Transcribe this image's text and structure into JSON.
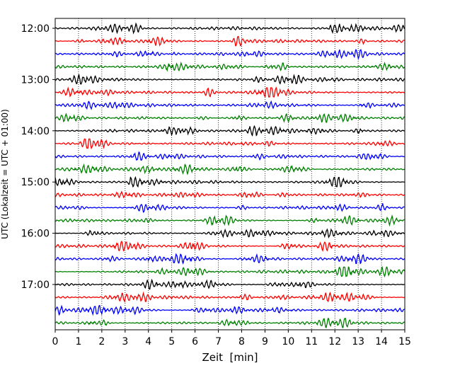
{
  "chart_data": {
    "type": "line",
    "title": "",
    "xlabel": "Zeit  [min]",
    "ylabel": "UTC (Lokalzeit = UTC + 01:00)",
    "xlim": [
      0,
      15
    ],
    "x_ticks": [
      "0",
      "1",
      "2",
      "3",
      "4",
      "5",
      "6",
      "7",
      "8",
      "9",
      "10",
      "11",
      "12",
      "13",
      "14",
      "15"
    ],
    "y_ticks": [
      "12:00",
      "13:00",
      "14:00",
      "15:00",
      "16:00",
      "17:00"
    ],
    "grid": "vertical dotted",
    "trace_interval_min": 15,
    "series": [
      {
        "start": "12:00",
        "color": "#000000"
      },
      {
        "start": "12:15",
        "color": "#ff0000"
      },
      {
        "start": "12:30",
        "color": "#0000ff"
      },
      {
        "start": "12:45",
        "color": "#008000"
      },
      {
        "start": "13:00",
        "color": "#000000"
      },
      {
        "start": "13:15",
        "color": "#ff0000"
      },
      {
        "start": "13:30",
        "color": "#0000ff"
      },
      {
        "start": "13:45",
        "color": "#008000"
      },
      {
        "start": "14:00",
        "color": "#000000"
      },
      {
        "start": "14:15",
        "color": "#ff0000"
      },
      {
        "start": "14:30",
        "color": "#0000ff"
      },
      {
        "start": "14:45",
        "color": "#008000"
      },
      {
        "start": "15:00",
        "color": "#000000"
      },
      {
        "start": "15:15",
        "color": "#ff0000"
      },
      {
        "start": "15:30",
        "color": "#0000ff"
      },
      {
        "start": "15:45",
        "color": "#008000"
      },
      {
        "start": "16:00",
        "color": "#000000"
      },
      {
        "start": "16:15",
        "color": "#ff0000"
      },
      {
        "start": "16:30",
        "color": "#0000ff"
      },
      {
        "start": "16:45",
        "color": "#008000"
      },
      {
        "start": "17:00",
        "color": "#000000"
      },
      {
        "start": "17:15",
        "color": "#ff0000"
      },
      {
        "start": "17:30",
        "color": "#0000ff"
      },
      {
        "start": "17:45",
        "color": "#008000"
      }
    ]
  }
}
